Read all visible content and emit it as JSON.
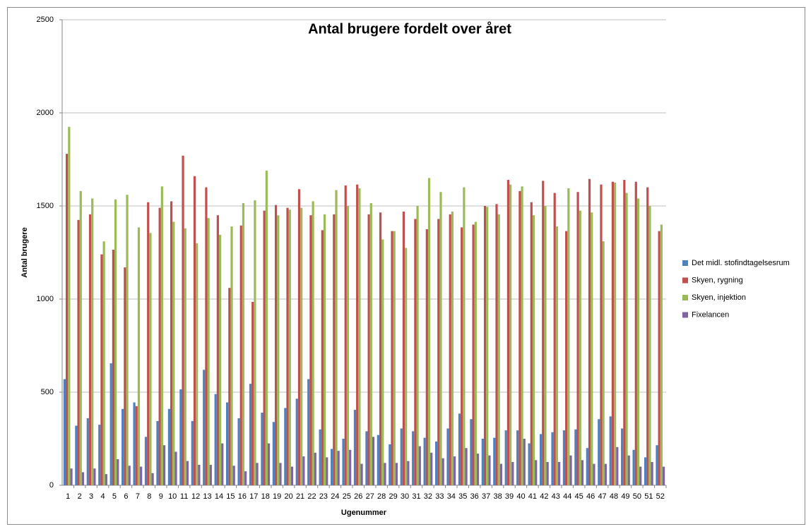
{
  "chart_data": {
    "type": "bar",
    "title": "Antal brugere fordelt over året",
    "x_label": "Ugenummer",
    "y_label": "Antal brugere",
    "categories": [
      "1",
      "2",
      "3",
      "4",
      "5",
      "6",
      "7",
      "8",
      "9",
      "10",
      "11",
      "12",
      "13",
      "14",
      "15",
      "16",
      "17",
      "18",
      "19",
      "20",
      "21",
      "22",
      "23",
      "24",
      "25",
      "26",
      "27",
      "28",
      "29",
      "30",
      "31",
      "32",
      "33",
      "34",
      "35",
      "36",
      "37",
      "38",
      "39",
      "40",
      "41",
      "42",
      "43",
      "44",
      "45",
      "46",
      "47",
      "48",
      "49",
      "50",
      "51",
      "52"
    ],
    "series": [
      {
        "name": "Det midl. stofindtagelsesrum",
        "color": "#4f81bd",
        "values": [
          570,
          320,
          360,
          325,
          655,
          410,
          445,
          260,
          345,
          410,
          515,
          345,
          620,
          490,
          445,
          360,
          545,
          390,
          340,
          415,
          465,
          570,
          300,
          195,
          250,
          405,
          290,
          270,
          220,
          305,
          290,
          255,
          235,
          305,
          385,
          355,
          250,
          255,
          295,
          295,
          225,
          275,
          285,
          295,
          300,
          200,
          355,
          370,
          305,
          190,
          150,
          215
        ]
      },
      {
        "name": "Skyen, rygning",
        "color": "#c0504d",
        "values": [
          1780,
          1425,
          1455,
          1240,
          1265,
          1170,
          425,
          1520,
          1490,
          1525,
          1770,
          1660,
          1600,
          1450,
          1060,
          1395,
          985,
          1475,
          1505,
          1490,
          1590,
          1450,
          1370,
          1455,
          1610,
          1615,
          1455,
          1465,
          1365,
          1470,
          1430,
          1375,
          1430,
          1455,
          1385,
          1400,
          1500,
          1510,
          1640,
          1580,
          1520,
          1635,
          1570,
          1365,
          1575,
          1645,
          1615,
          1630,
          1640,
          1630,
          1600,
          1365
        ]
      },
      {
        "name": "Skyen, injektion",
        "color": "#9bbb59",
        "values": [
          1925,
          1580,
          1540,
          1310,
          1535,
          1560,
          1385,
          1355,
          1605,
          1415,
          1380,
          1300,
          1435,
          1345,
          1390,
          1515,
          1530,
          1690,
          1450,
          1480,
          1490,
          1525,
          1455,
          1585,
          1500,
          1595,
          1515,
          1320,
          1365,
          1275,
          1500,
          1650,
          1575,
          1470,
          1600,
          1415,
          1495,
          1455,
          1615,
          1605,
          1450,
          1500,
          1390,
          1595,
          1475,
          1465,
          1310,
          1625,
          1570,
          1540,
          1500,
          1400
        ]
      },
      {
        "name": "Fixelancen",
        "color": "#8064a2",
        "values": [
          90,
          70,
          90,
          60,
          140,
          105,
          100,
          65,
          215,
          180,
          130,
          110,
          110,
          225,
          105,
          75,
          120,
          225,
          120,
          100,
          155,
          175,
          150,
          185,
          190,
          115,
          260,
          120,
          120,
          130,
          210,
          175,
          145,
          155,
          200,
          170,
          160,
          115,
          125,
          250,
          135,
          125,
          125,
          160,
          135,
          115,
          115,
          205,
          160,
          100,
          125,
          100
        ]
      }
    ],
    "ylim": [
      0,
      2500
    ],
    "yticks": [
      0,
      500,
      1000,
      1500,
      2000,
      2500
    ],
    "grid": true,
    "legend": "right"
  }
}
